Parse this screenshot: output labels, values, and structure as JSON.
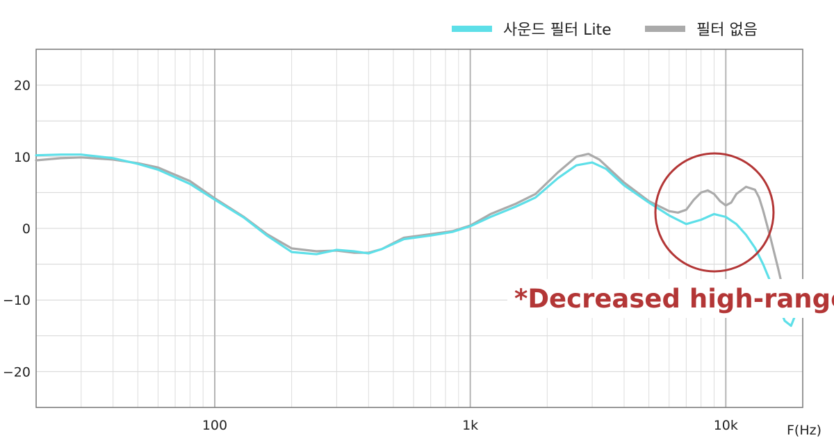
{
  "chart_data": {
    "type": "line",
    "title": "",
    "xlabel": "F(Hz)",
    "ylabel": "",
    "x_scale": "log",
    "xlim": [
      20,
      20000
    ],
    "ylim": [
      -25,
      25
    ],
    "x_ticks": [
      {
        "value": 100,
        "label": "100"
      },
      {
        "value": 1000,
        "label": "1k"
      },
      {
        "value": 10000,
        "label": "10k"
      }
    ],
    "y_ticks": [
      {
        "value": 20,
        "label": "20"
      },
      {
        "value": 10,
        "label": "10"
      },
      {
        "value": 0,
        "label": "0"
      },
      {
        "value": -10,
        "label": "−10"
      },
      {
        "value": -20,
        "label": "−20"
      }
    ],
    "grid": true,
    "legend_position": "top-right",
    "series": [
      {
        "name": "사운드 필터 Lite",
        "color": "#5ddfe8",
        "points": [
          [
            20,
            10.2
          ],
          [
            25,
            10.3
          ],
          [
            30,
            10.3
          ],
          [
            40,
            9.8
          ],
          [
            50,
            9.0
          ],
          [
            60,
            8.2
          ],
          [
            80,
            6.2
          ],
          [
            100,
            4.0
          ],
          [
            130,
            1.5
          ],
          [
            160,
            -1.0
          ],
          [
            200,
            -3.3
          ],
          [
            250,
            -3.6
          ],
          [
            300,
            -3.0
          ],
          [
            350,
            -3.2
          ],
          [
            400,
            -3.5
          ],
          [
            450,
            -2.9
          ],
          [
            550,
            -1.5
          ],
          [
            700,
            -1.0
          ],
          [
            850,
            -0.5
          ],
          [
            1000,
            0.3
          ],
          [
            1200,
            1.6
          ],
          [
            1500,
            3.0
          ],
          [
            1800,
            4.3
          ],
          [
            2200,
            7.0
          ],
          [
            2600,
            8.8
          ],
          [
            3000,
            9.2
          ],
          [
            3400,
            8.3
          ],
          [
            4000,
            6.0
          ],
          [
            5000,
            3.6
          ],
          [
            6000,
            1.8
          ],
          [
            7000,
            0.6
          ],
          [
            8000,
            1.2
          ],
          [
            9000,
            2.0
          ],
          [
            10000,
            1.6
          ],
          [
            11000,
            0.6
          ],
          [
            12000,
            -0.9
          ],
          [
            13000,
            -2.7
          ],
          [
            14000,
            -5.0
          ],
          [
            15000,
            -7.6
          ],
          [
            16000,
            -10.5
          ],
          [
            17000,
            -12.9
          ],
          [
            18000,
            -13.6
          ],
          [
            19000,
            -11.5
          ],
          [
            20000,
            -8.5
          ]
        ]
      },
      {
        "name": "필터 없음",
        "color": "#aaaaaa",
        "points": [
          [
            20,
            9.5
          ],
          [
            25,
            9.8
          ],
          [
            30,
            9.9
          ],
          [
            40,
            9.6
          ],
          [
            50,
            9.1
          ],
          [
            60,
            8.5
          ],
          [
            80,
            6.6
          ],
          [
            100,
            4.2
          ],
          [
            130,
            1.6
          ],
          [
            160,
            -0.8
          ],
          [
            200,
            -2.8
          ],
          [
            250,
            -3.2
          ],
          [
            300,
            -3.1
          ],
          [
            350,
            -3.4
          ],
          [
            400,
            -3.4
          ],
          [
            450,
            -2.9
          ],
          [
            550,
            -1.3
          ],
          [
            700,
            -0.8
          ],
          [
            850,
            -0.4
          ],
          [
            1000,
            0.4
          ],
          [
            1200,
            2.0
          ],
          [
            1500,
            3.4
          ],
          [
            1800,
            4.8
          ],
          [
            2200,
            7.8
          ],
          [
            2600,
            10.0
          ],
          [
            2900,
            10.4
          ],
          [
            3200,
            9.6
          ],
          [
            4000,
            6.4
          ],
          [
            5000,
            3.8
          ],
          [
            6000,
            2.4
          ],
          [
            6500,
            2.2
          ],
          [
            7000,
            2.6
          ],
          [
            7500,
            4.0
          ],
          [
            8000,
            5.0
          ],
          [
            8500,
            5.3
          ],
          [
            9000,
            4.8
          ],
          [
            9500,
            3.8
          ],
          [
            10000,
            3.2
          ],
          [
            10500,
            3.6
          ],
          [
            11000,
            4.8
          ],
          [
            12000,
            5.8
          ],
          [
            13000,
            5.4
          ],
          [
            13500,
            4.3
          ],
          [
            14000,
            2.5
          ],
          [
            15000,
            -1.5
          ],
          [
            16000,
            -5.5
          ],
          [
            17000,
            -9.5
          ],
          [
            18000,
            -11.6
          ],
          [
            19000,
            -10.0
          ],
          [
            20000,
            -8.0
          ]
        ]
      }
    ],
    "annotations": [
      {
        "text": "*Decreased high-range",
        "color": "#b33636"
      }
    ]
  }
}
